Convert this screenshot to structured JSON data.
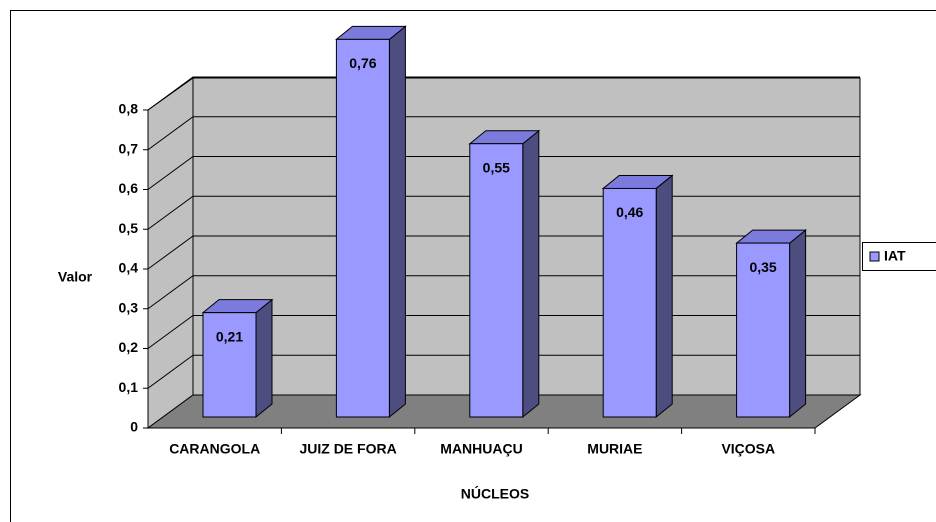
{
  "chart_data": {
    "type": "bar",
    "categories": [
      "CARANGOLA",
      "JUIZ DE FORA",
      "MANHUAÇU",
      "MURIAE",
      "VIÇOSA"
    ],
    "series": [
      {
        "name": "IAT",
        "color": "#9999ff",
        "values": [
          0.21,
          0.76,
          0.55,
          0.46,
          0.35
        ],
        "value_labels": [
          "0,21",
          "0,76",
          "0,55",
          "0,46",
          "0,35"
        ]
      }
    ],
    "ylabel": "Valor",
    "xlabel": "NÚCLEOS",
    "ylim": [
      0,
      0.8
    ],
    "yticks": [
      0,
      {
        "value": 0.1,
        "label": "0,1"
      },
      {
        "value": 0.2,
        "label": "0,2"
      },
      {
        "value": 0.3,
        "label": "0,3"
      },
      {
        "value": 0.4,
        "label": "0,4"
      },
      {
        "value": 0.5,
        "label": "0,5"
      },
      {
        "value": 0.6,
        "label": "0,6"
      },
      {
        "value": 0.7,
        "label": "0,7"
      },
      {
        "value": 0.8,
        "label": "0,8"
      }
    ],
    "grid": true,
    "legend": "right"
  }
}
